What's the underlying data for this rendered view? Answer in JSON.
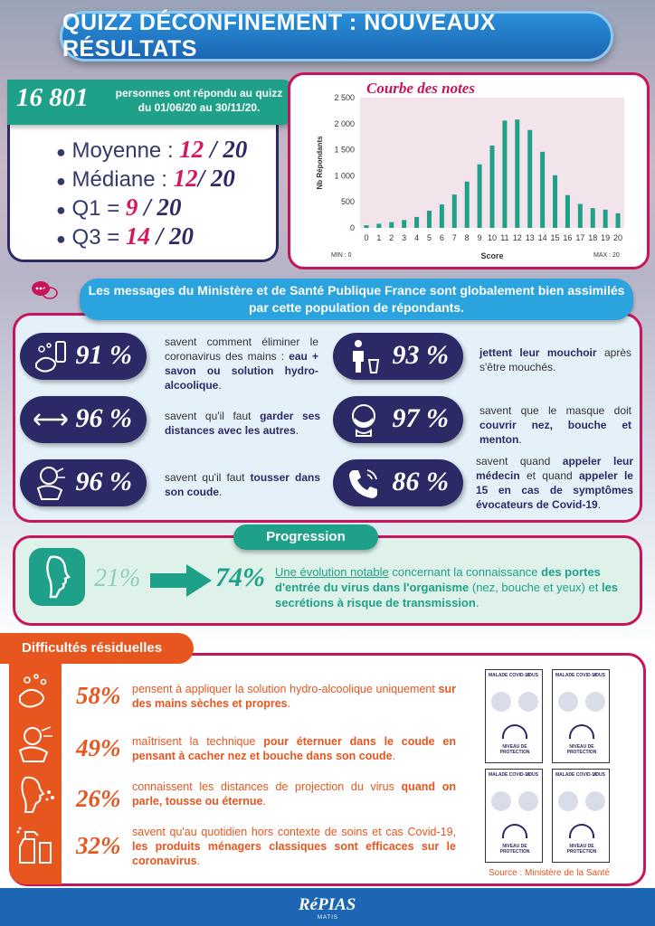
{
  "title": "QUIZZ DÉCONFINEMENT : NOUVEAUX RÉSULTATS",
  "respondents": {
    "count": "16 801",
    "text": "personnes ont répondu au quizz du 01/06/20 au 30/11/20."
  },
  "stats": [
    {
      "label": "Moyenne :",
      "value": "12",
      "sep": " / ",
      "total": "20"
    },
    {
      "label": "Médiane :",
      "value": "12",
      "sep": "/ ",
      "total": "20"
    },
    {
      "label": "Q1 =",
      "value": "9",
      "sep": " / ",
      "total": "20"
    },
    {
      "label": "Q3 =",
      "value": "14",
      "sep": " / ",
      "total": "20"
    }
  ],
  "chart_data": {
    "type": "bar",
    "title": "Courbe des notes",
    "xlabel": "Score",
    "ylabel": "Nb Répondants",
    "categories": [
      "0",
      "1",
      "2",
      "3",
      "4",
      "5",
      "6",
      "7",
      "8",
      "9",
      "10",
      "11",
      "12",
      "13",
      "14",
      "15",
      "16",
      "17",
      "18",
      "19",
      "20"
    ],
    "values": [
      50,
      80,
      110,
      150,
      210,
      330,
      450,
      640,
      890,
      1220,
      1580,
      2060,
      2080,
      1880,
      1460,
      1010,
      630,
      460,
      380,
      350,
      280
    ],
    "ylim": [
      0,
      2500
    ],
    "yticks": [
      "0",
      "500",
      "1 000",
      "1 500",
      "2 000",
      "2 500"
    ],
    "min_label": "MIN : 0",
    "max_label": "MAX : 20",
    "bar_color": "#1ea089"
  },
  "messages": {
    "banner": "Les messages du Ministère et de Santé Publique France sont globalement bien assimilés par cette population de répondants.",
    "items": [
      {
        "pct": "91 %",
        "pre": "savent comment éliminer le coronavirus des mains : ",
        "bold": "eau + savon ou solution hydro-alcoolique",
        "post": "."
      },
      {
        "pct": "93 %",
        "pre": "",
        "bold": "jettent leur mouchoir",
        "post": " après s'être mouchés."
      },
      {
        "pct": "96 %",
        "pre": "savent qu'il faut ",
        "bold": "garder ses distances avec les autres",
        "post": "."
      },
      {
        "pct": "97 %",
        "pre": "savent que le masque doit ",
        "bold": "couvrir nez, bouche et menton",
        "post": "."
      },
      {
        "pct": "96 %",
        "pre": "savent qu'il faut ",
        "bold": "tousser dans son coude",
        "post": "."
      },
      {
        "pct": "86 %",
        "pre": "savent quand ",
        "bold": "appeler leur médecin",
        "post": " et quand ",
        "bold2": "appeler le 15 en cas de symptômes évocateurs de Covid-19",
        "post2": "."
      }
    ]
  },
  "progression": {
    "tab": "Progression",
    "from": "21%",
    "to": "74%",
    "link": "Une évolution notable",
    "t1": " concernant la connaissance ",
    "b1": "des portes d'entrée du virus dans l'organisme",
    "t2": " (nez, bouche et yeux) et ",
    "b2": "les secrétions à risque de transmission",
    "t3": "."
  },
  "difficulties": {
    "tab": "Difficultés résiduelles",
    "items": [
      {
        "pct": "58%",
        "pre": "pensent à appliquer la solution hydro-alcoolique uniquement ",
        "bold": "sur des mains sèches et propres",
        "post": "."
      },
      {
        "pct": "49%",
        "pre": "maîtrisent la technique ",
        "bold": "pour éternuer dans le coude en pensant à cacher nez et bouche dans son coude",
        "post": "."
      },
      {
        "pct": "26%",
        "pre": "connaissent les distances de projection du virus ",
        "bold": "quand on parle, tousse ou éternue",
        "post": "."
      },
      {
        "pct": "32%",
        "pre": "savent qu'au quotidien hors contexte de soins et cas Covid-19, ",
        "bold": "les produits ménagers classiques sont efficaces sur le coronavirus",
        "post": "."
      }
    ],
    "poster": {
      "left": "MALADE COVID-19",
      "right": "VOUS",
      "level": "NIVEAU DE PROTECTION"
    },
    "source": "Source : Ministère de la Santé"
  },
  "footer": {
    "logo": "RéPIAS",
    "sub": "MATIS"
  }
}
